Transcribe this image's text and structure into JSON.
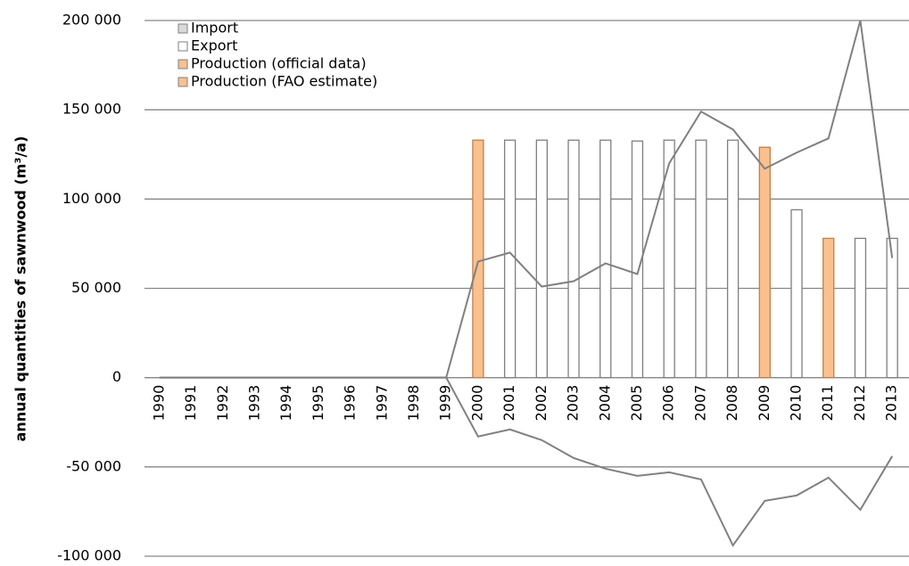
{
  "chart_data": {
    "type": "bar-line",
    "y_label": "annual quantities of sawnwood (m³/a)",
    "categories": [
      "1990",
      "1991",
      "1992",
      "1993",
      "1994",
      "1995",
      "1996",
      "1997",
      "1998",
      "1999",
      "2000",
      "2001",
      "2002",
      "2003",
      "2004",
      "2005",
      "2006",
      "2007",
      "2008",
      "2009",
      "2010",
      "2011",
      "2012",
      "2013"
    ],
    "series": [
      {
        "name": "Import",
        "kind": "line",
        "color": "#808080",
        "values": [
          0,
          0,
          0,
          0,
          0,
          0,
          0,
          0,
          0,
          0,
          65000,
          70000,
          51000,
          54000,
          64000,
          58000,
          120000,
          149000,
          139000,
          117000,
          126000,
          134000,
          200000,
          67000
        ]
      },
      {
        "name": "Export",
        "kind": "line",
        "color": "#808080",
        "values": [
          0,
          0,
          0,
          0,
          0,
          0,
          0,
          0,
          0,
          0,
          -33000,
          -29000,
          -35000,
          -45000,
          -51000,
          -55000,
          -53000,
          -57000,
          -94000,
          -69000,
          -66000,
          -56000,
          -74000,
          -44000
        ]
      },
      {
        "name": "Production (official data)",
        "kind": "bar",
        "color": "#fac090",
        "values": [
          null,
          null,
          null,
          null,
          null,
          null,
          null,
          null,
          null,
          null,
          133000,
          null,
          null,
          null,
          null,
          null,
          null,
          null,
          null,
          129000,
          null,
          78000,
          null,
          null
        ]
      },
      {
        "name": "Production (FAO estimate)",
        "kind": "bar",
        "color": "#ffffff",
        "values": [
          null,
          null,
          null,
          null,
          null,
          null,
          null,
          null,
          null,
          null,
          null,
          133000,
          133000,
          133000,
          133000,
          132500,
          133000,
          133000,
          133000,
          null,
          94000,
          null,
          78000,
          78000
        ]
      }
    ],
    "ylim": [
      -100000,
      200000
    ],
    "yticks": [
      {
        "value": -100000,
        "label": "-100 000"
      },
      {
        "value": -50000,
        "label": "-50 000"
      },
      0,
      {
        "value": 50000,
        "label": "50 000"
      },
      {
        "value": 100000,
        "label": "100 000"
      },
      {
        "value": 150000,
        "label": "150 000"
      },
      {
        "value": 200000,
        "label": "200 000"
      }
    ],
    "grid": true
  }
}
